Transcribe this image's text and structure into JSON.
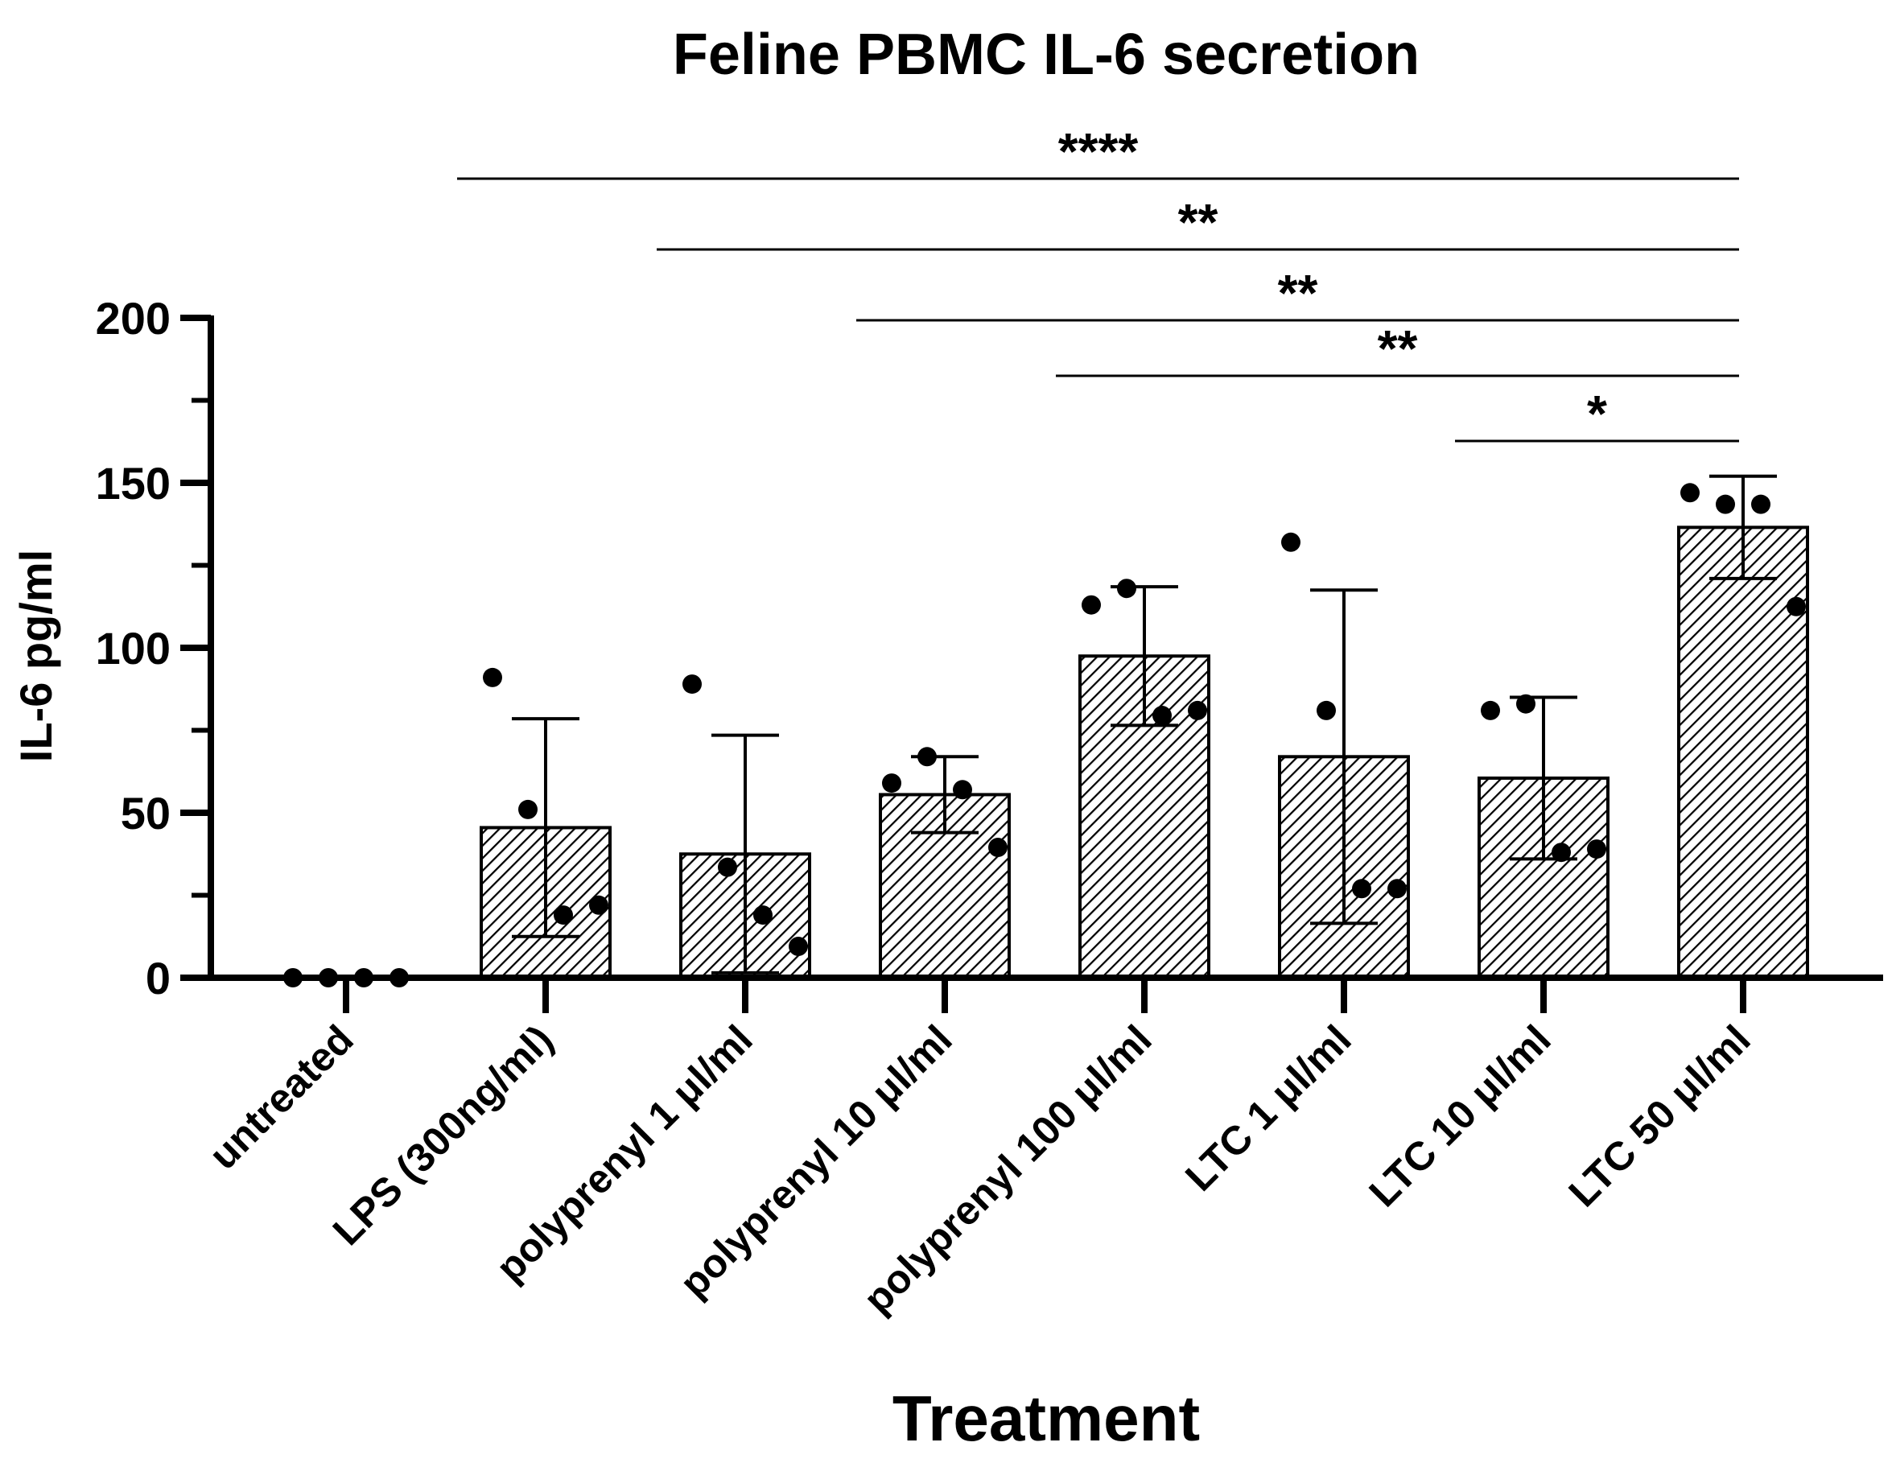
{
  "chart_data": {
    "type": "bar",
    "title": "Feline PBMC IL-6 secretion",
    "xlabel": "Treatment",
    "ylabel": "IL-6 pg/ml",
    "ylim": [
      0,
      200
    ],
    "yticks": [
      0,
      50,
      100,
      150,
      200
    ],
    "grid": false,
    "bar_pattern": "diagonal hatch",
    "colors": {
      "bar_fill": "#ffffff",
      "hatch": "#000000",
      "stroke": "#000000",
      "points": "#000000"
    },
    "categories": [
      "untreated",
      "LPS (300ng/ml)",
      "polyprenyl 1 μl/ml",
      "polyprenyl 10 μl/ml",
      "polyprenyl 100 μl/ml",
      "LTC 1 μl/ml",
      "LTC 10 μl/ml",
      "LTC 50 μl/ml"
    ],
    "values": [
      0,
      45.5,
      37.5,
      55.5,
      97.5,
      67,
      60.5,
      136.5
    ],
    "error": [
      0,
      33,
      36,
      11.5,
      21,
      50.5,
      24.5,
      15.5
    ],
    "points": [
      [
        0,
        0,
        0,
        0
      ],
      [
        91,
        51,
        19,
        22
      ],
      [
        89,
        33.5,
        19,
        9.5
      ],
      [
        59,
        67,
        57,
        39.5
      ],
      [
        113,
        118,
        79.5,
        81
      ],
      [
        132,
        81,
        27,
        27
      ],
      [
        81,
        83,
        38,
        39
      ],
      [
        147,
        143.5,
        143.5,
        112.5
      ]
    ],
    "significance": [
      {
        "from": 1,
        "to": 7,
        "label": "****"
      },
      {
        "from": 2,
        "to": 7,
        "label": "**"
      },
      {
        "from": 3,
        "to": 7,
        "label": "**"
      },
      {
        "from": 4,
        "to": 7,
        "label": "**"
      },
      {
        "from": 6,
        "to": 7,
        "label": "*"
      }
    ]
  }
}
